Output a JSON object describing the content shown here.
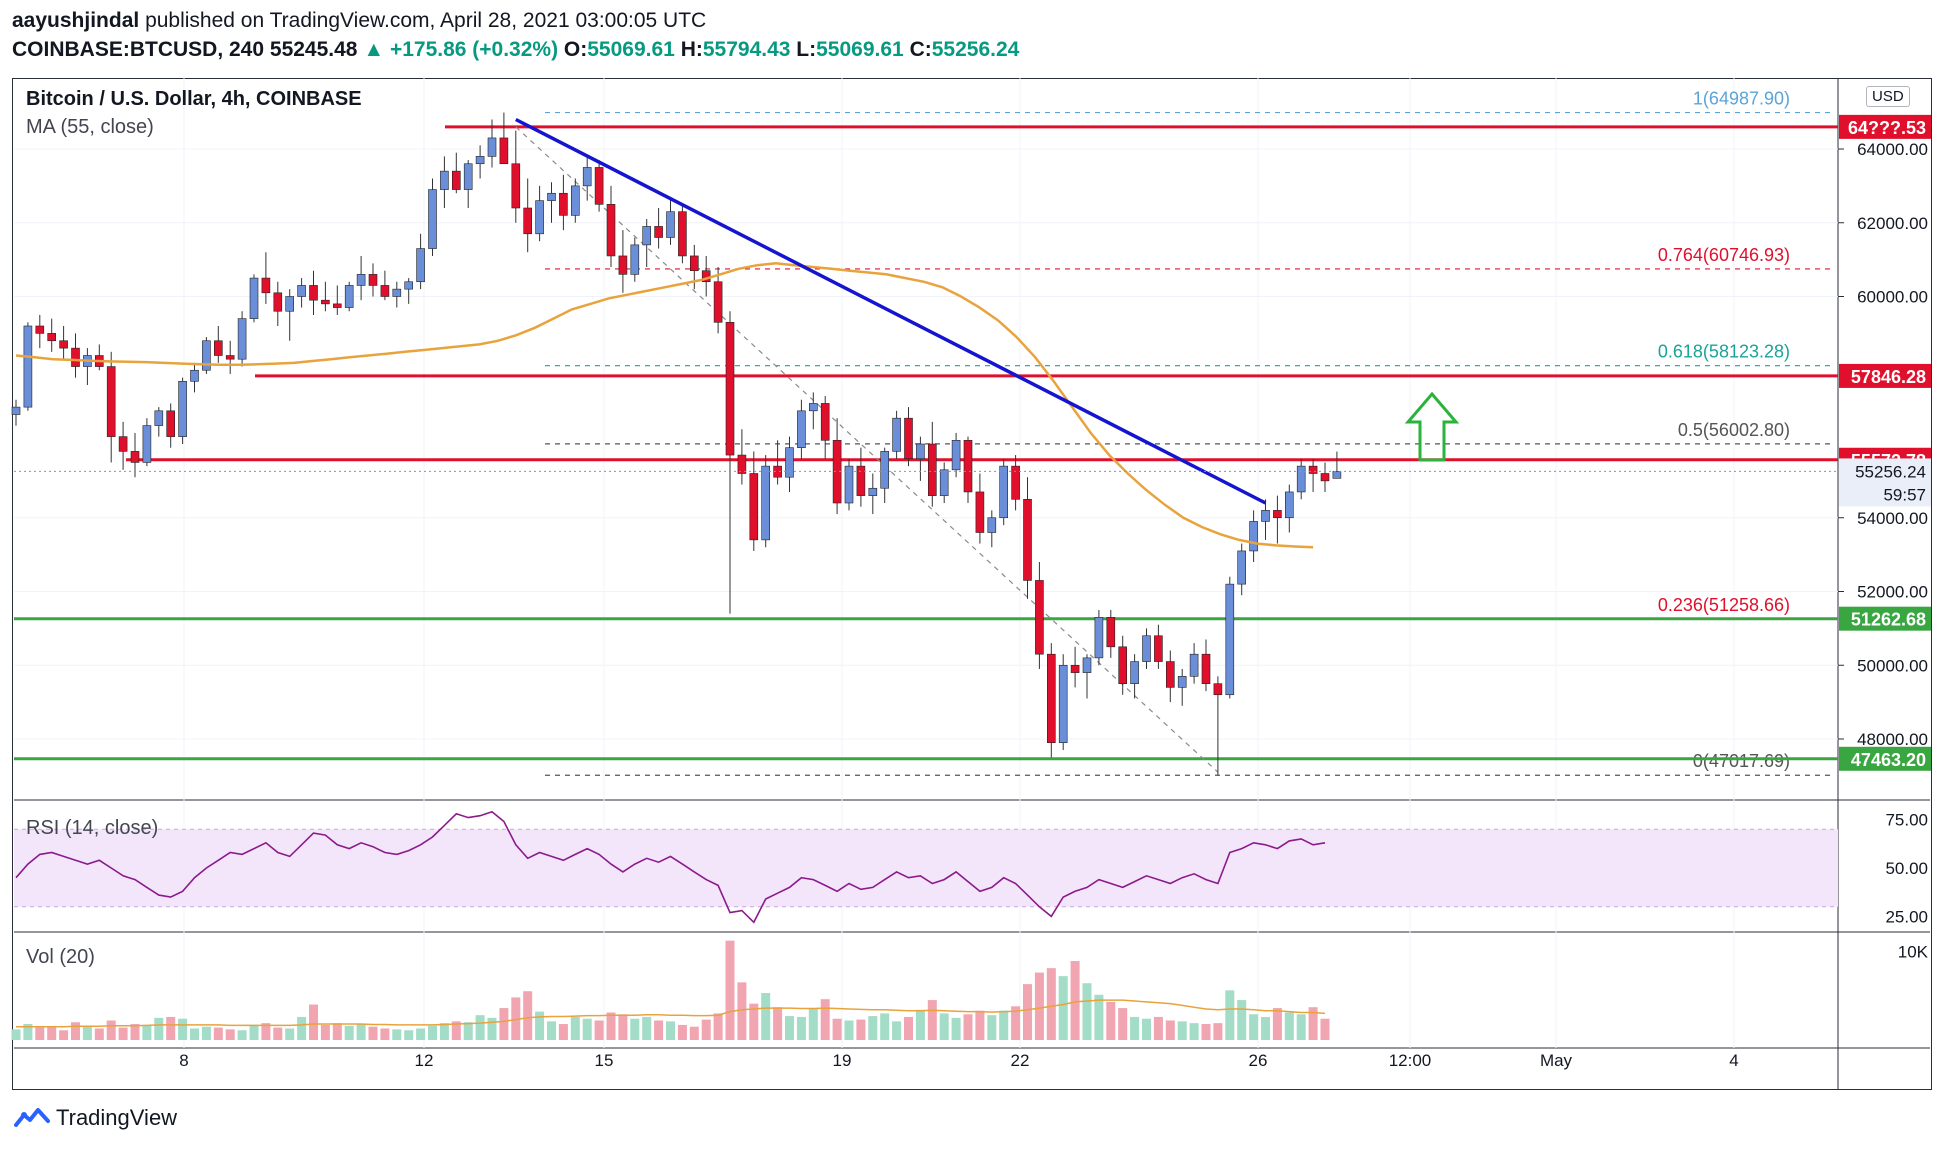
{
  "header": {
    "author": "aayushjindal",
    "published": "published on TradingView.com, April 28, 2021 03:00:05 UTC",
    "symbol": "COINBASE:BTCUSD, 240",
    "last": "55245.48",
    "change": "▲ +175.86 (+0.32%)",
    "open_label": "O:",
    "open": "55069.61",
    "high_label": "H:",
    "high": "55794.43",
    "low_label": "L:",
    "low": "55069.61",
    "close_label": "C:",
    "close": "55256.24"
  },
  "legend": {
    "title": "Bitcoin / U.S. Dollar, 4h, COINBASE",
    "ma": "MA (55, close)",
    "rsi": "RSI (14, close)",
    "vol": "Vol (20)"
  },
  "currency": "USD",
  "footer": {
    "brand": "TradingView"
  },
  "colors": {
    "up": "#6a8fd8",
    "down": "#e0102d",
    "ma": "#e8a33c",
    "trend": "#1515d0",
    "resistance": "#e0102d",
    "support": "#3aa641",
    "rsi": "#8b1a8b",
    "arrow": "#2ab33a"
  },
  "chart_data": [
    {
      "type": "candlestick",
      "x_ticks": [
        "8",
        "12",
        "15",
        "19",
        "22",
        "26",
        "12:00",
        "May",
        "4"
      ],
      "y_ticks": [
        "48000.00",
        "50000.00",
        "52000.00",
        "54000.00",
        "60000.00",
        "62000.00",
        "64000.00"
      ],
      "ylim": [
        46400,
        65600
      ],
      "ohlc": [
        [
          56800,
          57200,
          56500,
          57000
        ],
        [
          57000,
          59300,
          56900,
          59200
        ],
        [
          59200,
          59500,
          58600,
          59000
        ],
        [
          59000,
          59400,
          58500,
          58800
        ],
        [
          58800,
          59200,
          58300,
          58600
        ],
        [
          58600,
          59000,
          57800,
          58100
        ],
        [
          58100,
          58600,
          57600,
          58400
        ],
        [
          58400,
          58700,
          58000,
          58100
        ],
        [
          58100,
          58500,
          55500,
          56200
        ],
        [
          56200,
          56600,
          55300,
          55800
        ],
        [
          55800,
          56300,
          55100,
          55500
        ],
        [
          55500,
          56700,
          55400,
          56500
        ],
        [
          56500,
          57000,
          56200,
          56900
        ],
        [
          56900,
          57100,
          55900,
          56200
        ],
        [
          56200,
          57800,
          56000,
          57700
        ],
        [
          57700,
          58200,
          57400,
          58000
        ],
        [
          58000,
          58900,
          57900,
          58800
        ],
        [
          58800,
          59200,
          58200,
          58400
        ],
        [
          58400,
          58800,
          57900,
          58300
        ],
        [
          58300,
          59600,
          58100,
          59400
        ],
        [
          59400,
          60600,
          59300,
          60500
        ],
        [
          60500,
          61200,
          59800,
          60100
        ],
        [
          60100,
          60400,
          59200,
          59600
        ],
        [
          59600,
          60200,
          58800,
          60000
        ],
        [
          60000,
          60500,
          59700,
          60300
        ],
        [
          60300,
          60700,
          59500,
          59900
        ],
        [
          59900,
          60400,
          59600,
          59800
        ],
        [
          59800,
          60300,
          59500,
          59700
        ],
        [
          59700,
          60400,
          59600,
          60300
        ],
        [
          60300,
          61100,
          59900,
          60600
        ],
        [
          60600,
          60900,
          60000,
          60300
        ],
        [
          60300,
          60700,
          59900,
          60000
        ],
        [
          60000,
          60400,
          59700,
          60200
        ],
        [
          60200,
          60500,
          59800,
          60400
        ],
        [
          60400,
          61700,
          60200,
          61300
        ],
        [
          61300,
          63200,
          61100,
          62900
        ],
        [
          62900,
          63800,
          62400,
          63400
        ],
        [
          63400,
          63900,
          62800,
          62900
        ],
        [
          62900,
          63700,
          62400,
          63600
        ],
        [
          63600,
          64100,
          63200,
          63800
        ],
        [
          63800,
          64800,
          63500,
          64300
        ],
        [
          64300,
          64988,
          63700,
          63600
        ],
        [
          63600,
          64500,
          62000,
          62400
        ],
        [
          62400,
          63200,
          61200,
          61700
        ],
        [
          61700,
          63000,
          61500,
          62600
        ],
        [
          62600,
          63100,
          62000,
          62800
        ],
        [
          62800,
          63300,
          61800,
          62200
        ],
        [
          62200,
          63200,
          62000,
          63000
        ],
        [
          63000,
          63800,
          62600,
          63500
        ],
        [
          63500,
          63700,
          62300,
          62500
        ],
        [
          62500,
          63000,
          60800,
          61100
        ],
        [
          61100,
          61800,
          60100,
          60600
        ],
        [
          60600,
          61600,
          60400,
          61400
        ],
        [
          61400,
          62100,
          60800,
          61900
        ],
        [
          61900,
          62400,
          61300,
          61600
        ],
        [
          61600,
          62700,
          61400,
          62300
        ],
        [
          62300,
          62500,
          60900,
          61100
        ],
        [
          61100,
          61400,
          60200,
          60700
        ],
        [
          60700,
          61100,
          60000,
          60400
        ],
        [
          60400,
          60800,
          59000,
          59300
        ],
        [
          59300,
          59600,
          51400,
          55700
        ],
        [
          55700,
          56400,
          54900,
          55200
        ],
        [
          55200,
          55800,
          53100,
          53400
        ],
        [
          53400,
          55700,
          53200,
          55400
        ],
        [
          55400,
          56100,
          54900,
          55100
        ],
        [
          55100,
          56200,
          54700,
          55900
        ],
        [
          55900,
          57200,
          55600,
          56900
        ],
        [
          56900,
          57400,
          56400,
          57100
        ],
        [
          57100,
          57300,
          55600,
          56100
        ],
        [
          56100,
          56700,
          54100,
          54400
        ],
        [
          54400,
          55600,
          54200,
          55400
        ],
        [
          55400,
          55900,
          54300,
          54600
        ],
        [
          54600,
          55200,
          54100,
          54800
        ],
        [
          54800,
          55900,
          54400,
          55800
        ],
        [
          55800,
          56900,
          55600,
          56700
        ],
        [
          56700,
          57000,
          55400,
          55600
        ],
        [
          55600,
          56200,
          55000,
          56000
        ],
        [
          56000,
          56600,
          54300,
          54600
        ],
        [
          54600,
          55500,
          54400,
          55300
        ],
        [
          55300,
          56300,
          55100,
          56100
        ],
        [
          56100,
          56200,
          54400,
          54700
        ],
        [
          54700,
          55200,
          53300,
          53600
        ],
        [
          53600,
          54200,
          53200,
          54000
        ],
        [
          54000,
          55600,
          53800,
          55400
        ],
        [
          55400,
          55700,
          54200,
          54500
        ],
        [
          54500,
          55100,
          51800,
          52300
        ],
        [
          52300,
          52800,
          49900,
          50300
        ],
        [
          50300,
          50600,
          47500,
          47900
        ],
        [
          47900,
          50300,
          47700,
          50000
        ],
        [
          50000,
          50500,
          49400,
          49800
        ],
        [
          49800,
          50300,
          49100,
          50200
        ],
        [
          50200,
          51500,
          50000,
          51300
        ],
        [
          51300,
          51500,
          50200,
          50500
        ],
        [
          50500,
          50800,
          49200,
          49500
        ],
        [
          49500,
          50300,
          49100,
          50100
        ],
        [
          50100,
          51000,
          49900,
          50800
        ],
        [
          50800,
          51100,
          49900,
          50100
        ],
        [
          50100,
          50400,
          49000,
          49400
        ],
        [
          49400,
          49900,
          48900,
          49700
        ],
        [
          49700,
          50600,
          49500,
          50300
        ],
        [
          50300,
          50700,
          49300,
          49500
        ],
        [
          49500,
          49700,
          47017,
          49200
        ],
        [
          49200,
          52400,
          49100,
          52200
        ],
        [
          52200,
          53300,
          51900,
          53100
        ],
        [
          53100,
          54200,
          52800,
          53900
        ],
        [
          53900,
          54500,
          53400,
          54200
        ],
        [
          54200,
          54600,
          53300,
          54000
        ],
        [
          54000,
          54900,
          53600,
          54700
        ],
        [
          54700,
          55600,
          54500,
          55400
        ],
        [
          55400,
          55600,
          54700,
          55200
        ],
        [
          55200,
          55500,
          54700,
          55000
        ],
        [
          55069.61,
          55794.43,
          55069.61,
          55256.24
        ]
      ],
      "ma_points": [
        58400,
        58350,
        58300,
        58280,
        58260,
        58240,
        58230,
        58220,
        58200,
        58180,
        58160,
        58150,
        58150,
        58160,
        58180,
        58200,
        58250,
        58300,
        58350,
        58400,
        58450,
        58500,
        58550,
        58600,
        58650,
        58700,
        58800,
        58950,
        59150,
        59400,
        59650,
        59800,
        59950,
        60050,
        60150,
        60250,
        60350,
        60450,
        60600,
        60750,
        60850,
        60900,
        60850,
        60800,
        60750,
        60700,
        60650,
        60600,
        60500,
        60400,
        60250,
        60000,
        59700,
        59350,
        58900,
        58350,
        57700,
        57000,
        56300,
        55700,
        55200,
        54750,
        54350,
        54000,
        53750,
        53550,
        53400,
        53300,
        53250,
        53220,
        53200
      ],
      "ma_x_range": [
        0,
        109
      ],
      "trendline": [
        [
          42,
          64800
        ],
        [
          105,
          54400
        ]
      ],
      "fib_dashed": [
        [
          42,
          64600
        ],
        [
          101,
          47100
        ]
      ],
      "h_lines": [
        {
          "kind": "resistance",
          "y": 64600,
          "label": "64???.53"
        },
        {
          "kind": "resistance",
          "y": 57846.28,
          "label": "57846.28"
        },
        {
          "kind": "resistance",
          "y": 55572.78,
          "label": "55572.78"
        },
        {
          "kind": "support",
          "y": 51262.68,
          "label": "51262.68"
        },
        {
          "kind": "support",
          "y": 47463.2,
          "label": "47463.20"
        }
      ],
      "fib_levels": [
        {
          "ratio": "1",
          "value": "64987.90",
          "y": 64987.9,
          "color": "#5aa4d8"
        },
        {
          "ratio": "0.764",
          "value": "60746.93",
          "y": 60746.93,
          "color": "#e0102d"
        },
        {
          "ratio": "0.618",
          "value": "58123.28",
          "y": 58123.28,
          "color": "#1aa39a"
        },
        {
          "ratio": "0.5",
          "value": "56002.80",
          "y": 56002.8,
          "color": "#555555"
        },
        {
          "ratio": "0.236",
          "value": "51258.66",
          "y": 51258.66,
          "color": "#e0102d"
        },
        {
          "ratio": "0",
          "value": "47017.69",
          "y": 47017.69,
          "color": "#555555"
        }
      ],
      "current_price": {
        "value": "55256.24",
        "countdown": "59:57"
      }
    },
    {
      "type": "line",
      "name": "RSI (14, close)",
      "y_ticks": [
        "75.00",
        "50.00",
        "25.00"
      ],
      "ylim": [
        18,
        82
      ],
      "band": [
        30,
        70
      ],
      "values": [
        45,
        52,
        57,
        58,
        56,
        54,
        52,
        54,
        50,
        46,
        44,
        40,
        36,
        35,
        38,
        45,
        50,
        54,
        58,
        57,
        60,
        63,
        58,
        56,
        62,
        68,
        67,
        62,
        60,
        63,
        61,
        58,
        57,
        59,
        62,
        66,
        72,
        78,
        76,
        77,
        79,
        74,
        62,
        55,
        58,
        56,
        54,
        57,
        60,
        57,
        52,
        48,
        52,
        55,
        53,
        56,
        52,
        48,
        44,
        41,
        27,
        28,
        22,
        34,
        37,
        40,
        45,
        44,
        41,
        38,
        42,
        39,
        40,
        44,
        48,
        45,
        46,
        42,
        44,
        48,
        43,
        38,
        40,
        45,
        42,
        36,
        30,
        25,
        35,
        38,
        40,
        44,
        42,
        40,
        43,
        46,
        44,
        42,
        45,
        47,
        44,
        42,
        58,
        60,
        63,
        62,
        60,
        64,
        65,
        62,
        63
      ]
    },
    {
      "type": "bar",
      "name": "Vol (20)",
      "y_ticks": [
        "10K"
      ],
      "ylim": [
        0,
        11500
      ],
      "values": [
        1200,
        1800,
        1400,
        1500,
        1100,
        2000,
        1600,
        1300,
        2200,
        1400,
        1800,
        1700,
        2500,
        2600,
        2400,
        1300,
        1500,
        1400,
        1200,
        1100,
        1600,
        1900,
        1400,
        1300,
        2600,
        4000,
        1700,
        1900,
        1600,
        1800,
        1500,
        1300,
        1200,
        1100,
        1300,
        1600,
        1900,
        2100,
        2000,
        2800,
        2500,
        3600,
        4800,
        5500,
        3200,
        2100,
        1800,
        2600,
        2400,
        2200,
        3100,
        2900,
        2400,
        2600,
        2200,
        2100,
        1700,
        1500,
        2300,
        3000,
        11200,
        6500,
        4100,
        5300,
        3700,
        2700,
        2600,
        3500,
        4600,
        2400,
        2200,
        2300,
        2700,
        3000,
        2100,
        2600,
        3400,
        4500,
        3000,
        2500,
        2900,
        3300,
        2800,
        3300,
        3800,
        6300,
        7600,
        8100,
        7200,
        8900,
        6400,
        5100,
        4300,
        3600,
        2600,
        2400,
        2600,
        2200,
        2100,
        1900,
        1800,
        1900,
        5600,
        4500,
        2900,
        2600,
        3600,
        3100,
        2900,
        3700,
        2400
      ],
      "ma_values": [
        1500,
        1500,
        1500,
        1500,
        1500,
        1550,
        1550,
        1550,
        1600,
        1600,
        1600,
        1650,
        1700,
        1700,
        1700,
        1700,
        1700,
        1700,
        1650,
        1650,
        1650,
        1650,
        1650,
        1650,
        1700,
        1800,
        1800,
        1800,
        1800,
        1800,
        1750,
        1750,
        1700,
        1700,
        1700,
        1700,
        1750,
        1800,
        1850,
        1900,
        2000,
        2100,
        2300,
        2500,
        2600,
        2650,
        2650,
        2700,
        2750,
        2750,
        2800,
        2800,
        2800,
        2850,
        2850,
        2800,
        2800,
        2750,
        2750,
        2800,
        3200,
        3400,
        3500,
        3600,
        3600,
        3600,
        3550,
        3550,
        3600,
        3550,
        3500,
        3450,
        3400,
        3400,
        3350,
        3300,
        3300,
        3350,
        3300,
        3250,
        3200,
        3200,
        3150,
        3200,
        3250,
        3400,
        3600,
        3800,
        4000,
        4300,
        4400,
        4500,
        4500,
        4500,
        4400,
        4300,
        4200,
        4100,
        3900,
        3700,
        3500,
        3400,
        3500,
        3500,
        3400,
        3300,
        3300,
        3200,
        3100,
        3100,
        3000
      ]
    }
  ]
}
